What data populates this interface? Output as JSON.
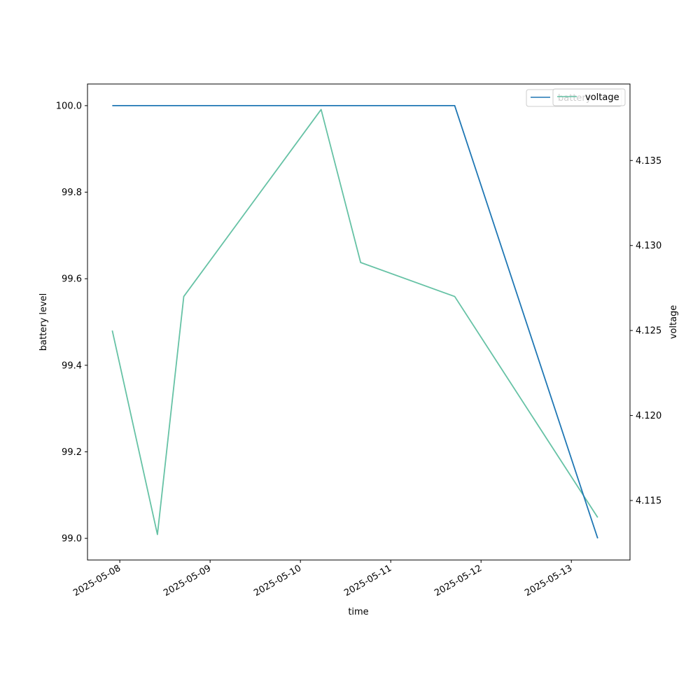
{
  "chart_data": {
    "type": "line",
    "xlabel": "time",
    "ylabel": "battery level",
    "y2label": "voltage",
    "x_ticks": [
      "2025-05-08",
      "2025-05-09",
      "2025-05-10",
      "2025-05-11",
      "2025-05-12",
      "2025-05-13"
    ],
    "y_ticks": [
      "99.0",
      "99.2",
      "99.4",
      "99.6",
      "99.8",
      "100.0"
    ],
    "y2_ticks": [
      "4.115",
      "4.120",
      "4.125",
      "4.130",
      "4.135"
    ],
    "xlim": [
      "2025-05-07 15:25",
      "2025-05-13 15:35"
    ],
    "ylim": [
      98.95,
      100.05
    ],
    "y2lim": [
      4.1115,
      4.1395
    ],
    "grid": false,
    "legend_position": "top-right",
    "series": [
      {
        "name": "battery",
        "axis": "left",
        "color": "#1f77b4",
        "points": [
          {
            "x": "2025-05-07 22:00",
            "y": 100.0
          },
          {
            "x": "2025-05-11 17:00",
            "y": 100.0
          },
          {
            "x": "2025-05-13 07:00",
            "y": 99.0
          }
        ]
      },
      {
        "name": "voltage",
        "axis": "right",
        "color": "#66c2a5",
        "points": [
          {
            "x": "2025-05-07 22:00",
            "y": 4.125
          },
          {
            "x": "2025-05-08 10:00",
            "y": 4.113
          },
          {
            "x": "2025-05-08 17:00",
            "y": 4.127
          },
          {
            "x": "2025-05-10 05:30",
            "y": 4.138
          },
          {
            "x": "2025-05-10 16:00",
            "y": 4.129
          },
          {
            "x": "2025-05-11 17:00",
            "y": 4.127
          },
          {
            "x": "2025-05-13 07:00",
            "y": 4.114
          }
        ]
      }
    ]
  }
}
